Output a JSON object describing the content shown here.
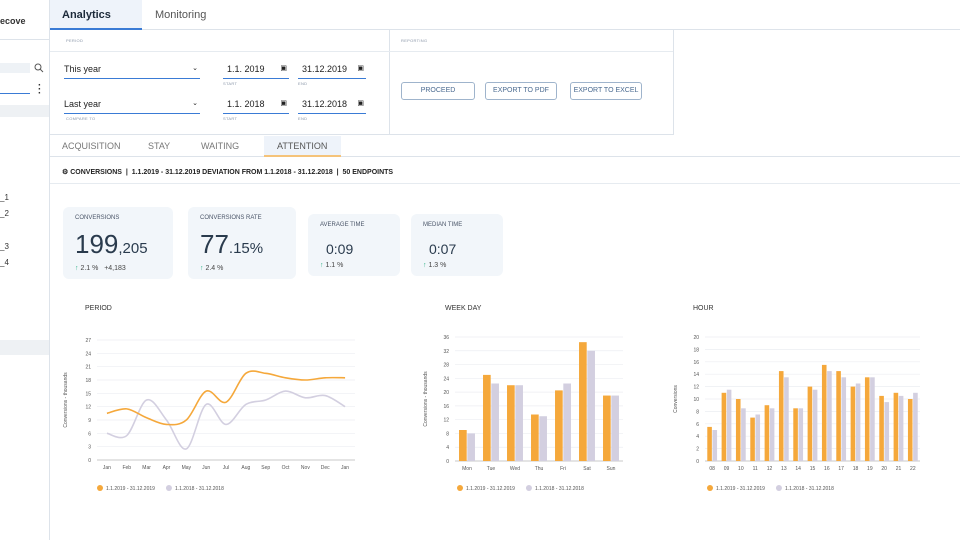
{
  "sidebar": {
    "title": "ecove",
    "items": [
      "_1",
      "_2",
      "_3",
      "_4"
    ]
  },
  "tabs": [
    "Analytics",
    "Monitoring"
  ],
  "filters": {
    "period_label": "PERIOD",
    "reporting_label": "REPORTING",
    "rows": [
      {
        "select": "This year",
        "start": "1.1. 2019",
        "end": "31.12.2019",
        "hint": "COMPARE TO"
      },
      {
        "select": "Last year",
        "start": "1.1. 2018",
        "end": "31.12.2018"
      }
    ],
    "start_hint": "START",
    "end_hint": "END",
    "buttons": [
      "PROCEED",
      "EXPORT TO PDF",
      "EXPORT TO EXCEL"
    ]
  },
  "subtabs": [
    "ACQUISITION",
    "STAY",
    "WAITING",
    "ATTENTION"
  ],
  "summary": {
    "metric": "CONVERSIONS",
    "range": "1.1.2019 - 31.12.2019 DEVIATION FROM 1.1.2018 - 31.12.2018",
    "endpoints": "50 ENDPOINTS"
  },
  "cards": [
    {
      "title": "CONVERSIONS",
      "big": "199",
      "small": ",205",
      "delta": "2.1 %",
      "extra": "+4,183"
    },
    {
      "title": "CONVERSIONS RATE",
      "big": "77",
      "small": ".15%",
      "delta": "2.4 %"
    },
    {
      "title": "AVERAGE TIME",
      "big": "0:09",
      "delta": "1.1 %"
    },
    {
      "title": "MEDIAN TIME",
      "big": "0:07",
      "delta": "1.3 %"
    }
  ],
  "charts": [
    {
      "type": "line",
      "title": "PERIOD",
      "y_label": "Conversions - thousands",
      "categories": [
        "Jan",
        "Feb",
        "Mar",
        "Apr",
        "May",
        "Jun",
        "Jul",
        "Aug",
        "Sep",
        "Oct",
        "Nov",
        "Dec",
        "Jan"
      ],
      "series": [
        {
          "name": "1.1.2019 - 31.12.2019",
          "color": "#f5a83b",
          "values": [
            10.5,
            11.5,
            9.5,
            8,
            9,
            15.5,
            13,
            19.5,
            19.5,
            18.5,
            18,
            18.5,
            18.5
          ]
        },
        {
          "name": "1.1.2018 - 31.12.2018",
          "color": "#d3cfe0",
          "values": [
            6,
            5.5,
            13.5,
            9,
            2.5,
            12.5,
            8,
            12.5,
            13.5,
            15.5,
            14,
            14.5,
            12
          ]
        }
      ],
      "ylim": [
        0,
        27
      ],
      "yticks": [
        0,
        3,
        6,
        9,
        12,
        15,
        18,
        21,
        24,
        27
      ],
      "grid": true
    },
    {
      "type": "bar",
      "title": "WEEK DAY",
      "y_label": "Conversions - thousands",
      "categories": [
        "Mon",
        "Tue",
        "Wed",
        "Thu",
        "Fri",
        "Sat",
        "Sun"
      ],
      "series": [
        {
          "name": "1.1.2019 - 31.12.2019",
          "color": "#f5a83b",
          "values": [
            9,
            25,
            22,
            13.5,
            20.5,
            34.5,
            19
          ]
        },
        {
          "name": "1.1.2018 - 31.12.2018",
          "color": "#d3cfe0",
          "values": [
            8,
            22.5,
            22,
            13,
            22.5,
            32,
            19
          ]
        }
      ],
      "ylim": [
        0,
        36
      ],
      "yticks": [
        0,
        4,
        8,
        12,
        16,
        20,
        24,
        28,
        32,
        36
      ],
      "grid": true
    },
    {
      "type": "bar",
      "title": "HOUR",
      "y_label": "Conversions",
      "categories": [
        "08",
        "09",
        "10",
        "11",
        "12",
        "13",
        "14",
        "15",
        "16",
        "17",
        "18",
        "19",
        "20",
        "21",
        "22"
      ],
      "series": [
        {
          "name": "1.1.2019 - 31.12.2019",
          "color": "#f5a83b",
          "values": [
            5.5,
            11,
            10,
            7,
            9,
            14.5,
            8.5,
            12,
            15.5,
            14.5,
            12,
            13.5,
            10.5,
            11,
            10
          ]
        },
        {
          "name": "1.1.2018 - 31.12.2018",
          "color": "#d3cfe0",
          "values": [
            5,
            11.5,
            8.5,
            7.5,
            8.5,
            13.5,
            8.5,
            11.5,
            14.5,
            13.5,
            12.5,
            13.5,
            9.5,
            10.5,
            11
          ]
        }
      ],
      "ylim": [
        0,
        20
      ],
      "yticks": [
        0,
        2,
        4,
        6,
        8,
        10,
        12,
        14,
        16,
        18,
        20
      ],
      "grid": true
    }
  ]
}
